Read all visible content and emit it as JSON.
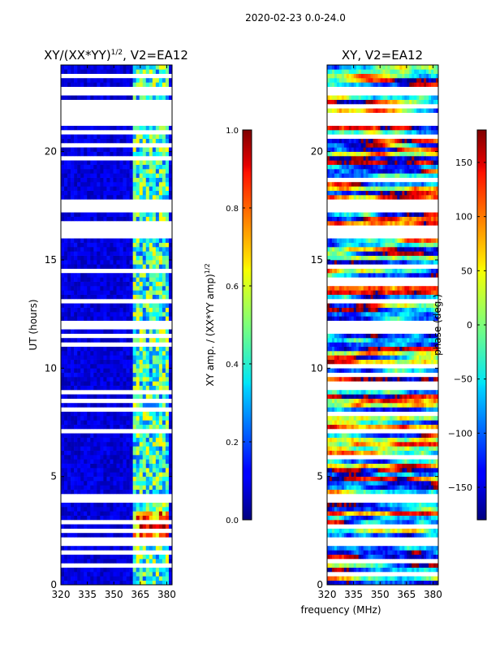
{
  "figure": {
    "suptitle": "2020-02-23 0.0-24.0",
    "xlabel_shared": "frequency (MHz)"
  },
  "chart_data": [
    {
      "type": "heatmap",
      "title_main": "XY/(XX*YY)",
      "title_sup": "1/2",
      "title_tail": ", V2=EA12",
      "xlabel": "frequency (MHz)",
      "ylabel": "UT (hours)",
      "xlim": [
        320,
        383
      ],
      "ylim": [
        0,
        24
      ],
      "xticks": [
        320,
        335,
        350,
        365,
        380
      ],
      "yticks": [
        0,
        5,
        10,
        15,
        20
      ],
      "colorbar": {
        "label": "XY amp. / (XX*YY amp)",
        "label_sup": "1/2",
        "range": [
          0.0,
          1.0
        ],
        "ticks": [
          "0.0",
          "0.2",
          "0.4",
          "0.6",
          "0.8",
          "1.0"
        ],
        "colormap": "jet"
      },
      "gap_rows_hours": [
        1.9,
        2.0,
        3.9,
        4.0,
        4.1,
        11.9,
        12.0,
        13.0,
        13.1,
        16.1,
        16.3,
        16.5,
        17.5,
        17.7,
        21.3,
        21.5,
        21.7,
        22.1,
        23.0
      ],
      "bright_band_mhz": [
        361,
        382
      ],
      "bright_block_hours": [
        2.2,
        3.4
      ]
    },
    {
      "type": "heatmap",
      "title_main": "XY, V2=EA12",
      "title_sup": "",
      "title_tail": "",
      "xlabel": "frequency (MHz)",
      "ylabel": "",
      "xlim": [
        320,
        383
      ],
      "ylim": [
        0,
        24
      ],
      "xticks": [
        320,
        335,
        350,
        365,
        380
      ],
      "yticks": [
        0,
        5,
        10,
        15,
        20
      ],
      "colorbar": {
        "label": "phase (deg.)",
        "label_sup": "",
        "range": [
          -180,
          180
        ],
        "ticks": [
          "−150",
          "−100",
          "−50",
          "0",
          "50",
          "100",
          "150"
        ],
        "tick_values": [
          -150,
          -100,
          -50,
          0,
          50,
          100,
          150
        ],
        "colormap": "jet"
      },
      "gap_rows_hours": [
        1.9,
        2.0,
        3.9,
        4.0,
        4.1,
        11.9,
        12.0,
        13.0,
        13.1,
        16.1,
        16.3,
        16.5,
        17.5,
        17.7,
        21.3,
        21.5,
        21.7,
        22.1,
        23.0
      ]
    }
  ]
}
